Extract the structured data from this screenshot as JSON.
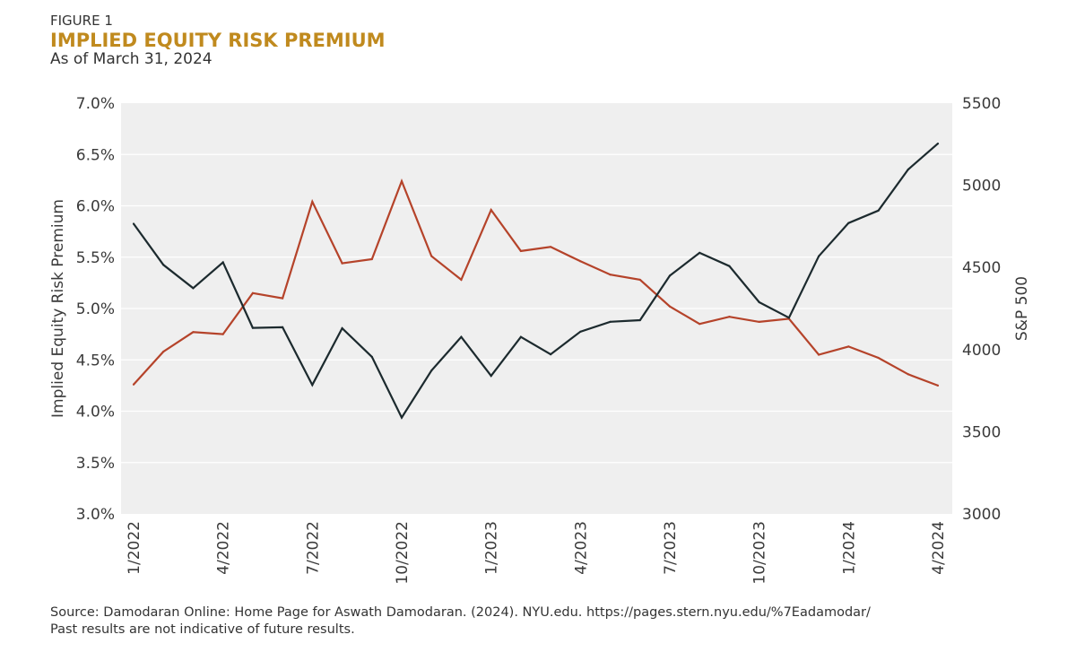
{
  "figure_label": "FIGURE 1",
  "title": "IMPLIED EQUITY RISK PREMIUM",
  "subtitle": "As of March 31, 2024",
  "source_line1": "Source: Damodaran Online: Home Page for Aswath Damodaran. (2024). NYU.edu. https://pages.stern.nyu.edu/%7Eadamodar/",
  "source_line2": "Past results are not indicative of future results.",
  "chart_data": {
    "type": "line",
    "title": "IMPLIED EQUITY RISK PREMIUM",
    "ylabel": "Implied Equity Risk Premium",
    "y2label": "S&P 500",
    "ylim": [
      3.0,
      7.0
    ],
    "y2lim": [
      3000,
      5500
    ],
    "yticks": [
      "3.0%",
      "3.5%",
      "4.0%",
      "4.5%",
      "5.0%",
      "5.5%",
      "6.0%",
      "6.5%",
      "7.0%"
    ],
    "y2ticks": [
      "3000",
      "3500",
      "4000",
      "4500",
      "5000",
      "5500"
    ],
    "xtick_labels": [
      "1/2022",
      "4/2022",
      "7/2022",
      "10/2022",
      "1/2023",
      "4/2023",
      "7/2023",
      "10/2023",
      "1/2024",
      "4/2024"
    ],
    "x": [
      "1/2022",
      "2/2022",
      "3/2022",
      "4/2022",
      "5/2022",
      "6/2022",
      "7/2022",
      "8/2022",
      "9/2022",
      "10/2022",
      "11/2022",
      "12/2022",
      "1/2023",
      "2/2023",
      "3/2023",
      "4/2023",
      "5/2023",
      "6/2023",
      "7/2023",
      "8/2023",
      "9/2023",
      "10/2023",
      "11/2023",
      "12/2023",
      "1/2024",
      "2/2024",
      "3/2024",
      "4/2024"
    ],
    "series": [
      {
        "name": "Implied Equity Risk Premium",
        "axis": "left",
        "color": "#b5432a",
        "values": [
          4.26,
          4.58,
          4.77,
          4.75,
          5.15,
          5.1,
          6.04,
          5.44,
          5.48,
          6.24,
          5.51,
          5.28,
          5.96,
          5.56,
          5.6,
          5.46,
          5.33,
          5.28,
          5.02,
          4.85,
          4.92,
          4.87,
          4.9,
          4.55,
          4.63,
          4.52,
          4.36,
          4.25
        ]
      },
      {
        "name": "S&P 500",
        "axis": "right",
        "color": "#1c2a2e",
        "values": [
          4766,
          4516,
          4374,
          4531,
          4132,
          4136,
          3785,
          4130,
          3956,
          3586,
          3872,
          4077,
          3840,
          4077,
          3971,
          4109,
          4169,
          4179,
          4450,
          4589,
          4508,
          4288,
          4194,
          4568,
          4770,
          4846,
          5096,
          5254
        ]
      }
    ]
  }
}
